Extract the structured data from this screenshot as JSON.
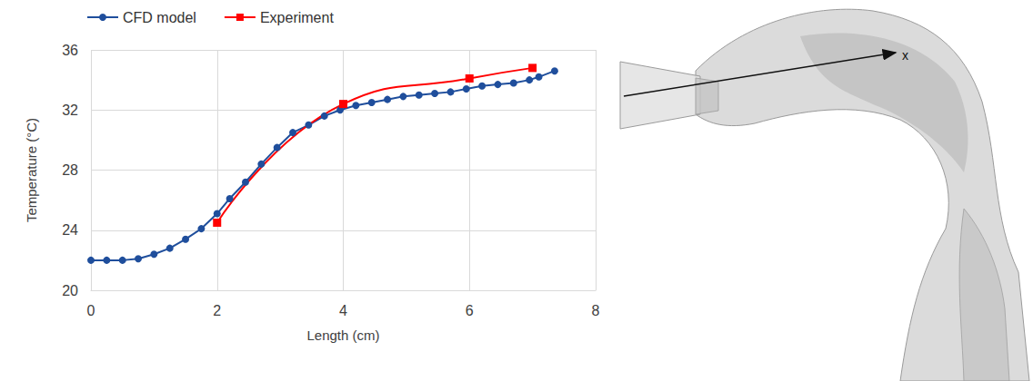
{
  "chart_data": {
    "type": "line",
    "x_label": "Length (cm)",
    "y_label": "Temperature (°C)",
    "xlim": [
      0,
      8
    ],
    "xticks": [
      0,
      2,
      4,
      6,
      8
    ],
    "ylim": [
      20,
      36
    ],
    "yticks": [
      20,
      24,
      28,
      32,
      36
    ],
    "grid": true,
    "legend": "top-left",
    "series": [
      {
        "name": "CFD model",
        "color": "#1f4e9c",
        "marker": "circle",
        "line_style": "solid",
        "x": [
          0,
          0.25,
          0.5,
          0.75,
          1,
          1.25,
          1.5,
          1.75,
          2,
          2.2,
          2.45,
          2.7,
          2.95,
          3.2,
          3.45,
          3.7,
          3.95,
          4.2,
          4.45,
          4.7,
          4.95,
          5.2,
          5.45,
          5.7,
          5.95,
          6.2,
          6.45,
          6.7,
          6.95,
          7.1,
          7.35
        ],
        "values": [
          22.0,
          22.0,
          22.0,
          22.1,
          22.4,
          22.8,
          23.4,
          24.1,
          25.1,
          26.1,
          27.2,
          28.4,
          29.5,
          30.5,
          31.0,
          31.6,
          32.0,
          32.3,
          32.5,
          32.7,
          32.9,
          33.0,
          33.1,
          33.2,
          33.4,
          33.6,
          33.7,
          33.8,
          34.0,
          34.2,
          34.6
        ]
      },
      {
        "name": "Experiment",
        "color": "#ff0000",
        "marker": "square",
        "line_style": "smooth",
        "x": [
          2,
          4,
          6,
          7
        ],
        "values": [
          24.5,
          32.4,
          34.1,
          34.8
        ]
      }
    ]
  },
  "illustration": {
    "arrow_label": "x"
  }
}
